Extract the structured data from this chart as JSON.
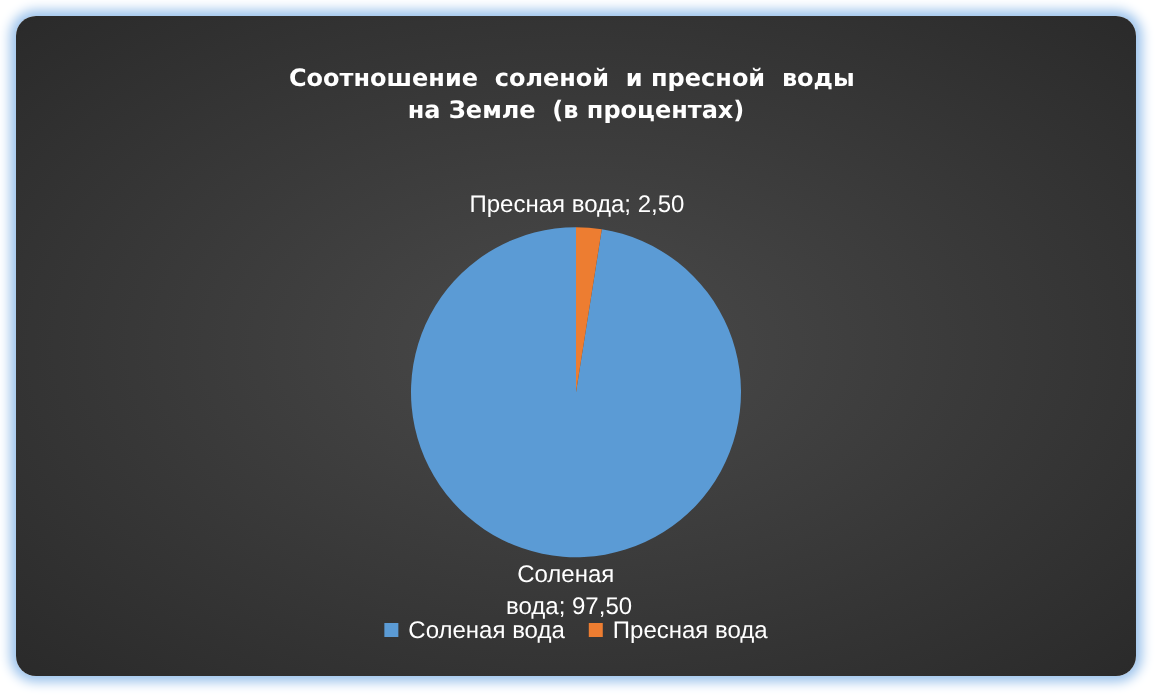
{
  "chart_data": {
    "type": "pie",
    "title": "Соотношение  соленой  и пресной  воды на Земле  (в процентах)",
    "categories": [
      "Соленая вода",
      "Пресная вода"
    ],
    "values": [
      97.5,
      2.5
    ],
    "colors": [
      "#5b9bd5",
      "#ed7d31"
    ],
    "value_labels": [
      "Соленая вода; 97,50",
      "Пресная вода; 2,50"
    ],
    "legend": "bottom"
  }
}
